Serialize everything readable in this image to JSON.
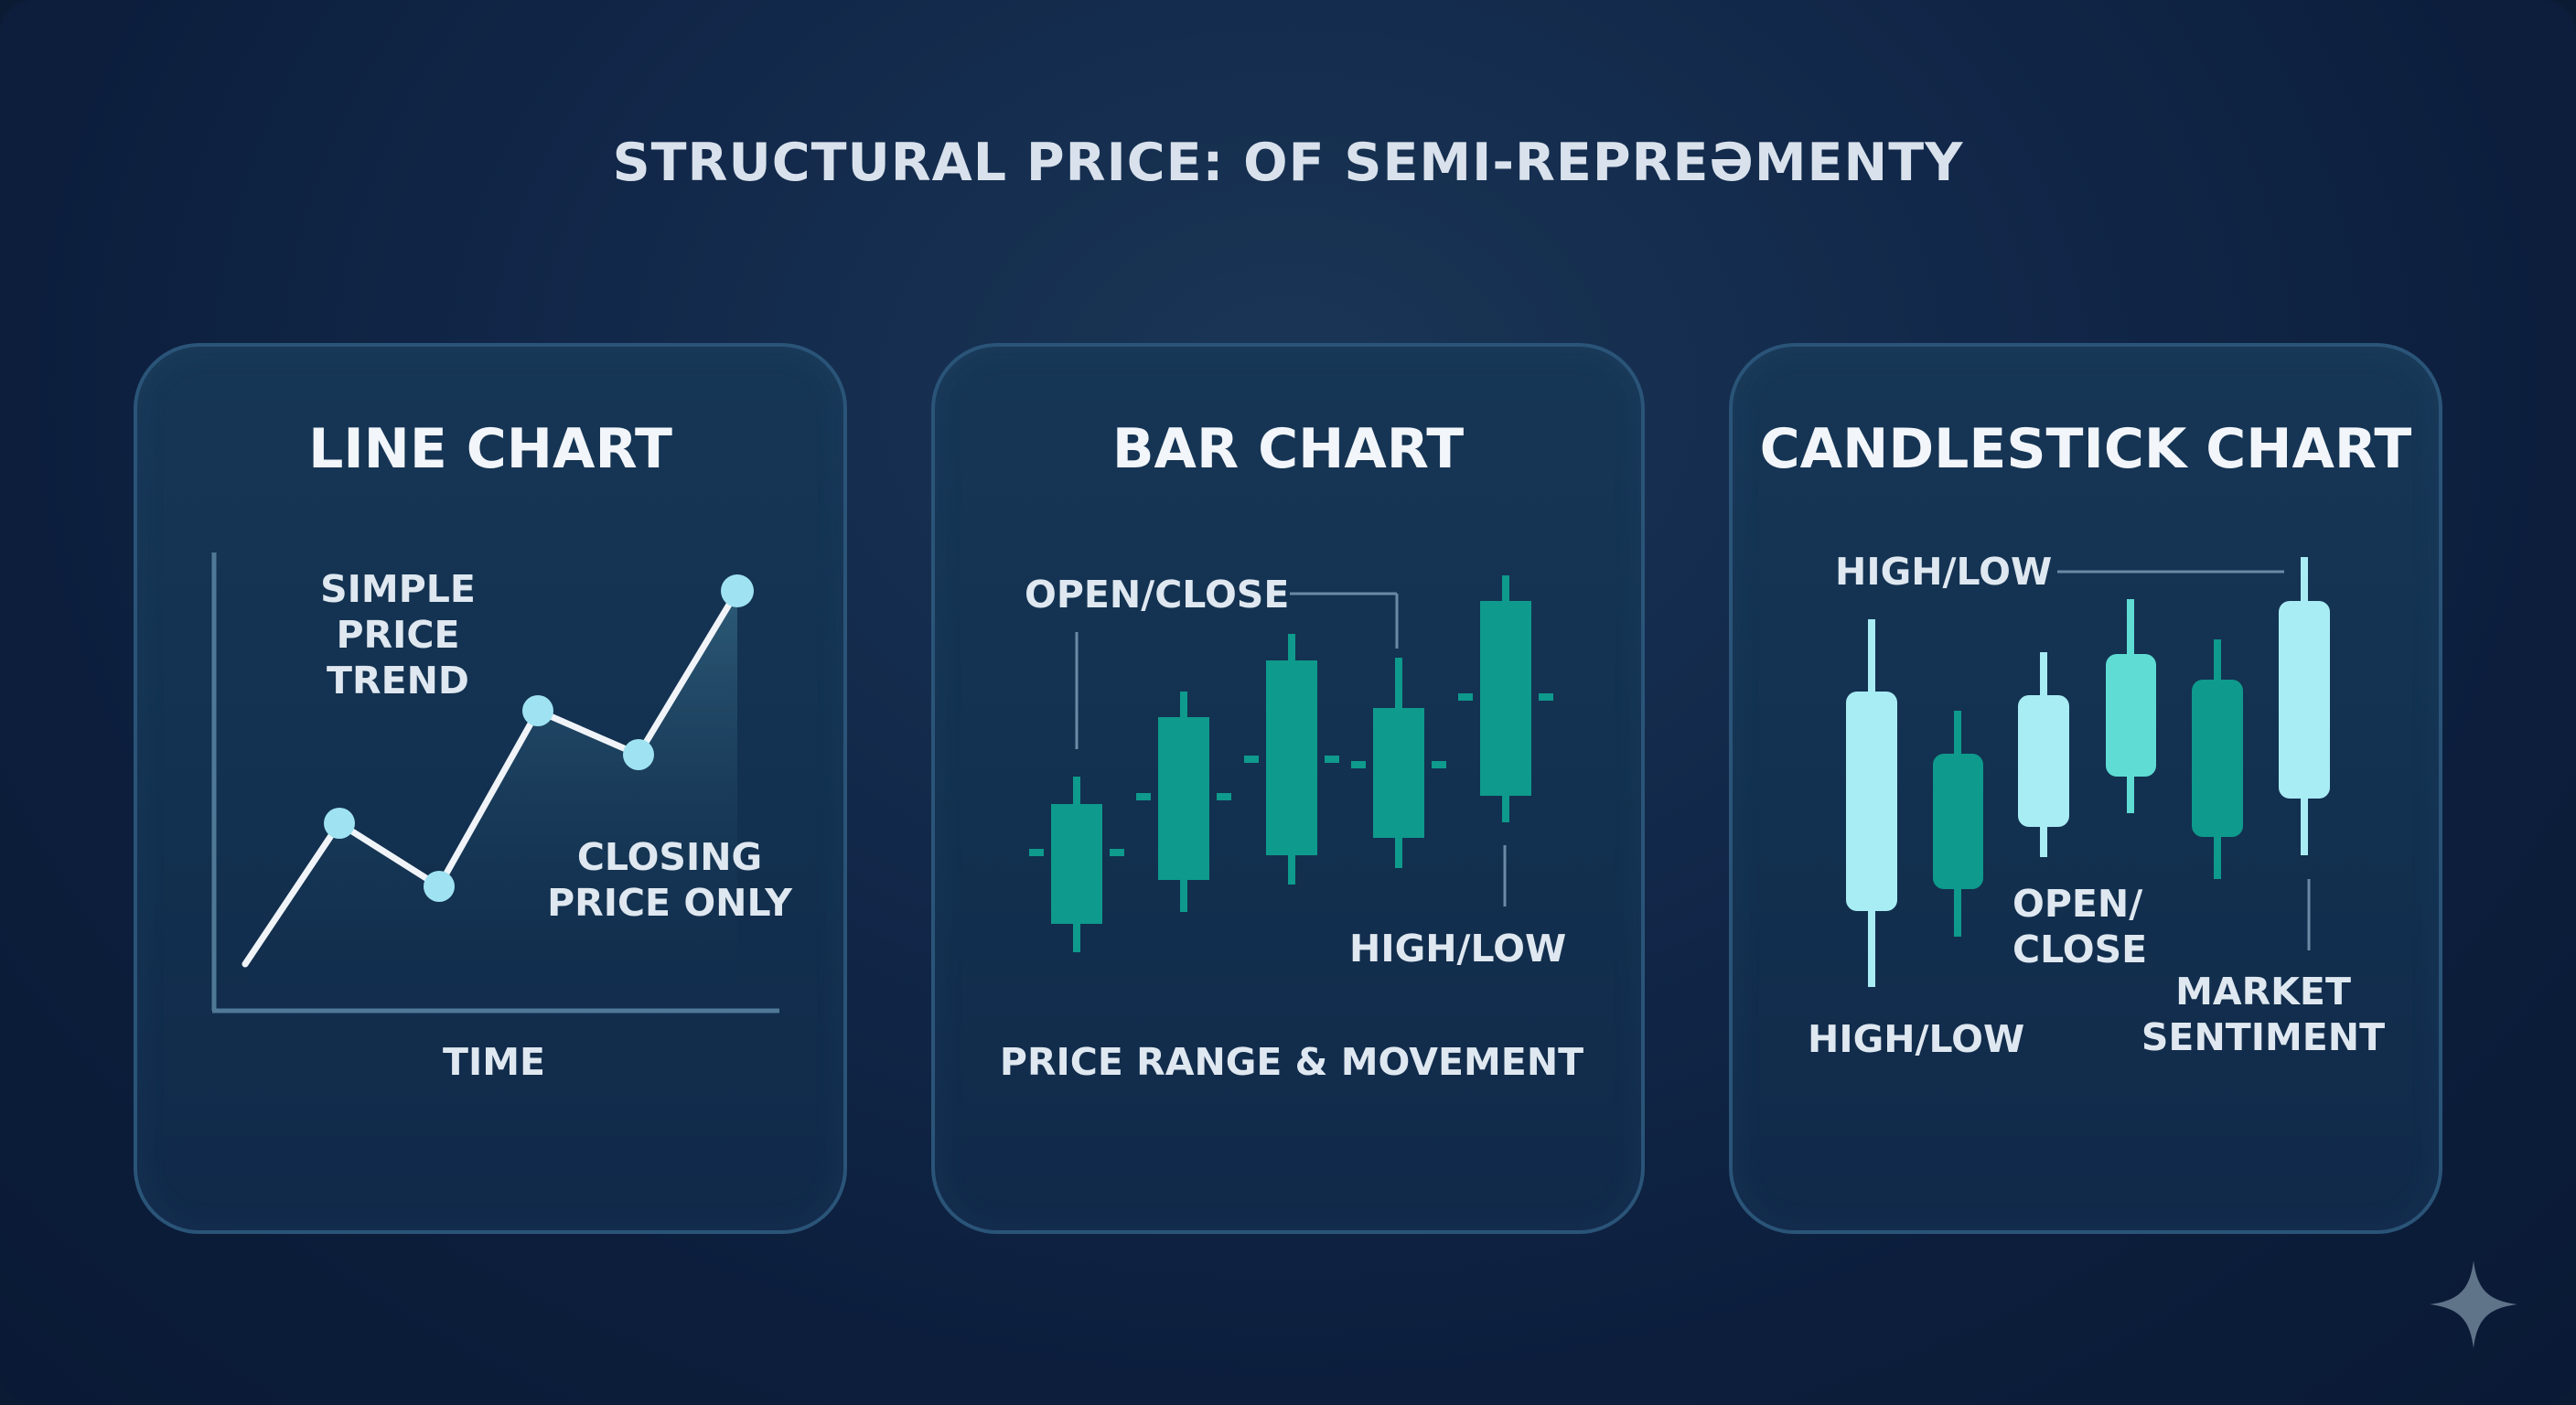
{
  "title": "STRUCTURAL PRICE: OF SEMI-REPREƏMENTY",
  "colors": {
    "bg": "#0c1e3c",
    "panel_border": "#2a5478",
    "dark_teal": "#0e9a8c",
    "light_teal": "#5fdcd4",
    "pale_cyan": "#a8ecf4",
    "line_white": "#f0f4f8",
    "dot": "#9fe3f2"
  },
  "panels": [
    {
      "title": "LINE CHART",
      "label_trend": "SIMPLE\nPRICE TREND",
      "label_closing": "CLOSING\nPRICE ONLY",
      "axis_label": "TIME"
    },
    {
      "title": "BAR CHART",
      "label_open_close": "OPEN/CLOSE",
      "label_high_low": "HIGH/LOW",
      "caption": "PRICE RANGE & MOVEMENT"
    },
    {
      "title": "CANDLESTICK CHART",
      "label_high_low_top": "HIGH/LOW",
      "label_open_close": "OPEN/\nCLOSE",
      "label_high_low_bottom": "HIGH/LOW",
      "label_sentiment": "MARKET\nSENTIMENT"
    }
  ],
  "icons": {
    "corner": "sparkle-icon"
  }
}
